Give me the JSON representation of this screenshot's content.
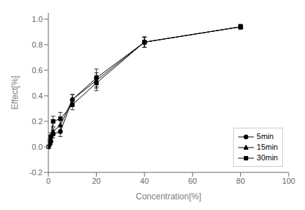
{
  "chart_data": {
    "type": "line",
    "xlabel": "Concentration[%]",
    "ylabel": "Effect[%]",
    "x": [
      0,
      0.5,
      1,
      2,
      5,
      10,
      20,
      40,
      80
    ],
    "series": [
      {
        "name": "5min",
        "marker": "circle",
        "values": [
          0.0,
          0.02,
          0.04,
          0.1,
          0.12,
          0.37,
          0.54,
          0.82,
          0.94
        ],
        "yerr": [
          0.01,
          0.015,
          0.02,
          0.03,
          0.04,
          0.04,
          0.07,
          0.04,
          0.015
        ]
      },
      {
        "name": "15min",
        "marker": "triangle",
        "values": [
          0.0,
          0.03,
          0.06,
          0.12,
          0.17,
          0.37,
          0.52,
          0.82,
          0.94
        ],
        "yerr": [
          0.01,
          0.015,
          0.02,
          0.03,
          0.04,
          0.04,
          0.06,
          0.04,
          0.015
        ]
      },
      {
        "name": "30min",
        "marker": "square",
        "values": [
          0.0,
          0.04,
          0.08,
          0.2,
          0.22,
          0.33,
          0.5,
          0.82,
          0.94
        ],
        "yerr": [
          0.01,
          0.02,
          0.03,
          0.04,
          0.05,
          0.04,
          0.06,
          0.04,
          0.02
        ]
      }
    ],
    "color": "#000000",
    "xlim": [
      0,
      100
    ],
    "ylim": [
      -0.2,
      1.05
    ],
    "xticks": [
      0,
      20,
      40,
      60,
      80,
      100
    ],
    "yticks": [
      -0.2,
      {
        "value": 0,
        "label": "0.0"
      },
      0.2,
      0.4,
      0.6,
      0.8,
      {
        "value": 1,
        "label": "1.0"
      }
    ],
    "legend": "lower right",
    "grid": false
  }
}
